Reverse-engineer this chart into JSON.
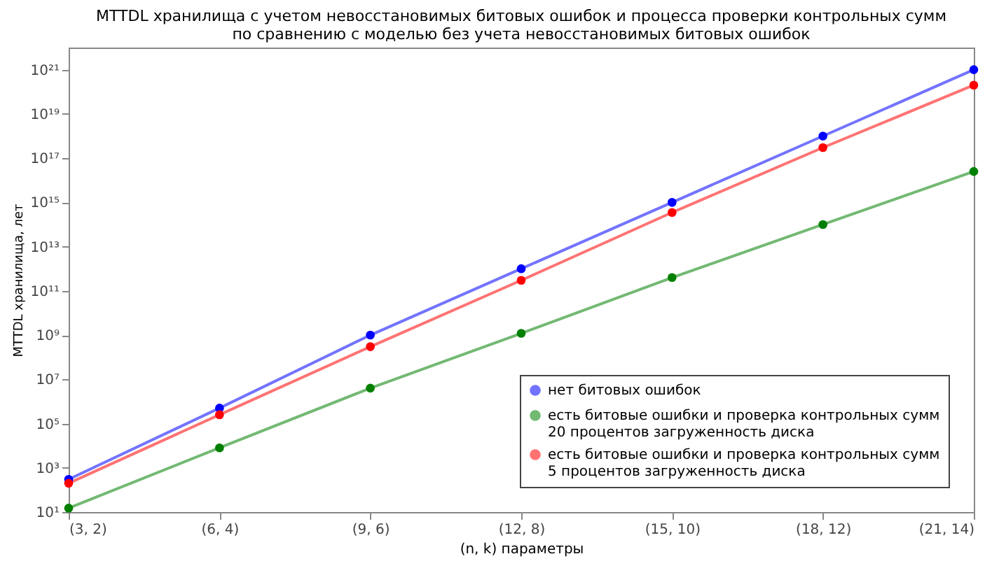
{
  "chart_data": {
    "type": "line",
    "title": "MTTDL хранилища с учетом невосстановимых битовых ошибок и процесса проверки контрольных сумм\nпо сравнению с моделью без учета невосстановимых битовых ошибок",
    "xlabel": "(n, k) параметры",
    "ylabel": "MTTDL хранилища, лет",
    "categories": [
      "(3, 2)",
      "(6, 4)",
      "(9, 6)",
      "(12, 8)",
      "(15, 10)",
      "(18, 12)",
      "(21, 14)"
    ],
    "log": "y",
    "grid": false,
    "legend": "bottom right",
    "marker": "circle",
    "line_style": "solid",
    "ylim": [
      10,
      1e+22
    ],
    "yticks": [
      {
        "value": 10,
        "label": "10¹"
      },
      {
        "value": 1000.0,
        "label": "10³"
      },
      {
        "value": 100000.0,
        "label": "10⁵"
      },
      {
        "value": 10000000.0,
        "label": "10⁷"
      },
      {
        "value": 1000000000.0,
        "label": "10⁹"
      },
      {
        "value": 100000000000.0,
        "label": "10¹¹"
      },
      {
        "value": 10000000000000.0,
        "label": "10¹³"
      },
      {
        "value": 1000000000000000.0,
        "label": "10¹⁵"
      },
      {
        "value": 1e+17,
        "label": "10¹⁷"
      },
      {
        "value": 1e+19,
        "label": "10¹⁹"
      },
      {
        "value": 1e+21,
        "label": "10²¹"
      }
    ],
    "series": [
      {
        "name": "нет битовых ошибок",
        "color": "#0000ff",
        "values": [
          300.0,
          500000.0,
          1000000000.0,
          1000000000000.0,
          1000000000000000.0,
          1e+18,
          1e+21
        ]
      },
      {
        "name": "есть битовые ошибки и проверка контрольных сумм\n20 процентов загруженность диска",
        "color": "#008000",
        "values": [
          15.0,
          8000.0,
          4000000.0,
          1200000000.0,
          400000000000.0,
          100000000000000.0,
          2.5e+16
        ]
      },
      {
        "name": "есть битовые ошибки и проверка контрольных сумм\n5 процентов загруженность диска",
        "color": "#ff0000",
        "values": [
          200.0,
          250000.0,
          300000000.0,
          300000000000.0,
          350000000000000.0,
          3e+17,
          2e+20
        ]
      }
    ]
  }
}
